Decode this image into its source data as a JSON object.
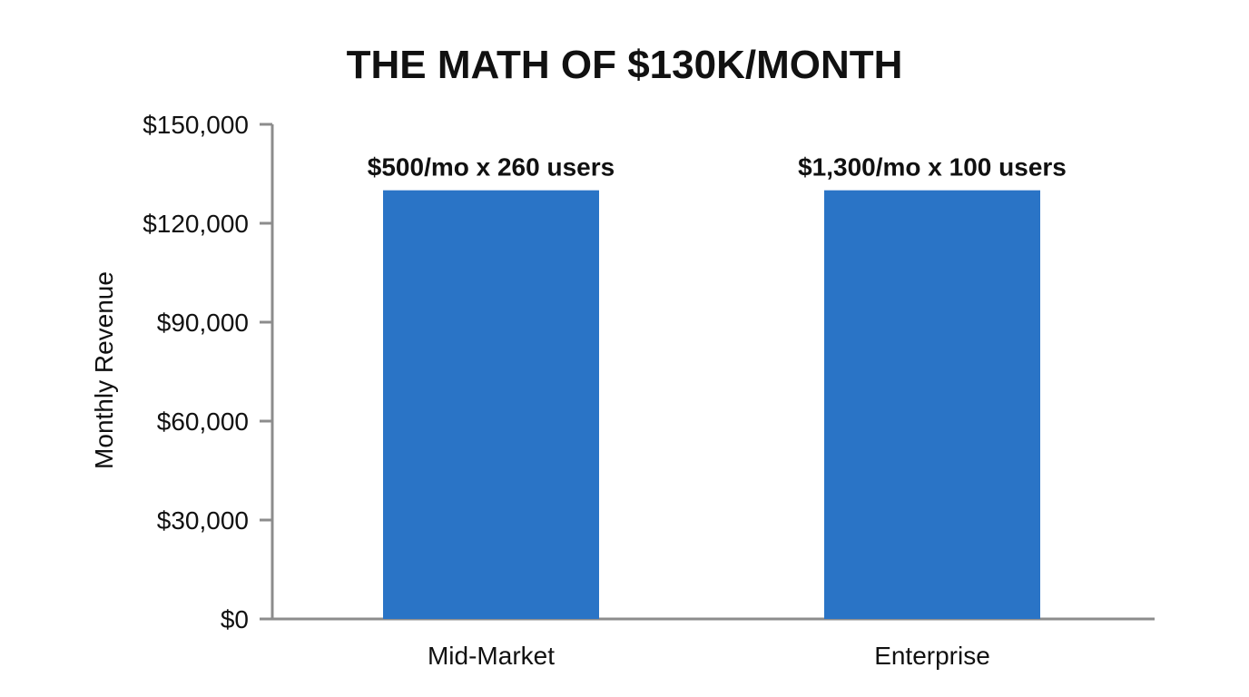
{
  "chart_data": {
    "type": "bar",
    "title": "THE MATH OF $130K/MONTH",
    "xlabel": "",
    "ylabel": "Monthly Revenue",
    "categories": [
      "Mid-Market",
      "Enterprise"
    ],
    "values": [
      130000,
      130000
    ],
    "data_labels": [
      "$500/mo x 260 users",
      "$1,300/mo x 100 users"
    ],
    "ylim": [
      0,
      150000
    ],
    "yticks": [
      0,
      30000,
      60000,
      90000,
      120000,
      150000
    ],
    "ytick_labels": [
      "$0",
      "$30,000",
      "$60,000",
      "$90,000",
      "$120,000",
      "$150,000"
    ],
    "grid": false,
    "legend": "none",
    "colors": {
      "bar": "#2a74c6",
      "axis": "#8c8c8c",
      "text": "#111111"
    }
  }
}
